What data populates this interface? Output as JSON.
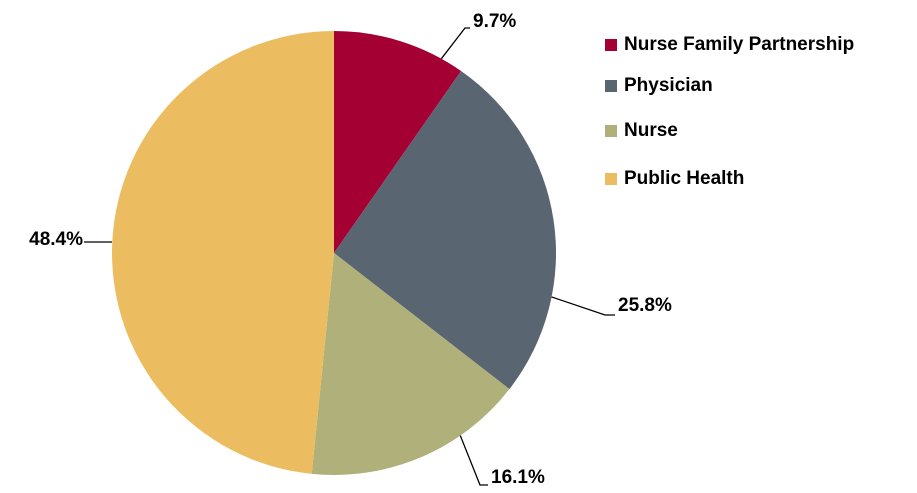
{
  "chart_data": {
    "type": "pie",
    "categories": [
      "Nurse Family Partnership",
      "Physician",
      "Nurse",
      "Public Health"
    ],
    "values": [
      9.7,
      25.8,
      16.1,
      48.4
    ],
    "value_labels": [
      "9.7%",
      "25.8%",
      "16.1%",
      "48.4%"
    ],
    "colors": [
      "#a50034",
      "#596570",
      "#b0b07a",
      "#ecbd60"
    ],
    "legend": "right"
  }
}
